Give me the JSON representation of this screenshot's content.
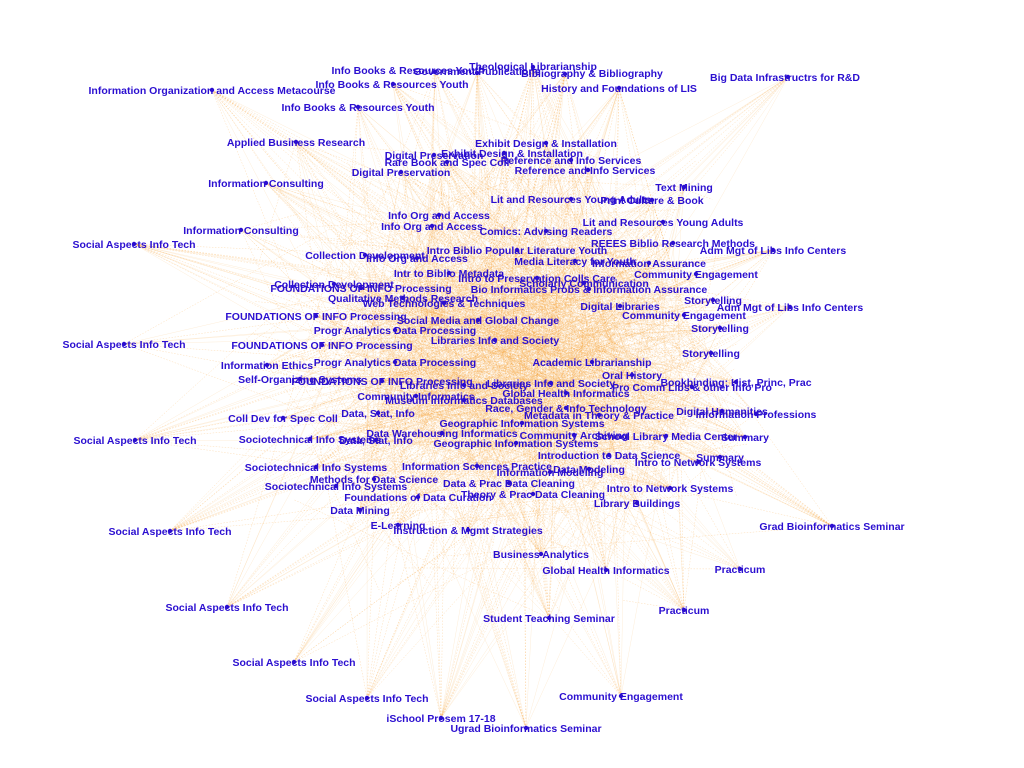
{
  "graph": {
    "edge_color": "#f7a23a",
    "label_color": "#2b0fd0",
    "nodes": [
      {
        "label": "Theological Librarianship"
      },
      {
        "label": "Info Books & Resources Youth"
      },
      {
        "label": "Government Publications"
      },
      {
        "label": "Bibliography & Bibliography"
      },
      {
        "label": "Big Data Infrastructrs for R&D"
      },
      {
        "label": "Info Books & Resources Youth"
      },
      {
        "label": "Information Organization and Access Metacourse"
      },
      {
        "label": "History and Foundations of LIS"
      },
      {
        "label": "Info Books & Resources Youth"
      },
      {
        "label": "Applied Business Research"
      },
      {
        "label": "Exhibit Design & Installation"
      },
      {
        "label": "Exhibit Design & Installation"
      },
      {
        "label": "Digital Preservation"
      },
      {
        "label": "Rare Book and Spec Coll"
      },
      {
        "label": "Reference and Info Services"
      },
      {
        "label": "Reference and Info Services"
      },
      {
        "label": "Digital Preservation"
      },
      {
        "label": "Text Mining"
      },
      {
        "label": "Information Consulting"
      },
      {
        "label": "Lit and Resources Young Adults"
      },
      {
        "label": "Print Culture & Book"
      },
      {
        "label": "Information Consulting"
      },
      {
        "label": "Social Aspects Info Tech"
      },
      {
        "label": "Info Org and Access"
      },
      {
        "label": "Comics: Advising Readers"
      },
      {
        "label": "Lit and Resources Young Adults"
      },
      {
        "label": "Info Org and Access"
      },
      {
        "label": "REEES Biblio Research Methods"
      },
      {
        "label": "Intro Biblio Popular Literature Youth"
      },
      {
        "label": "Adm Mgt of Libs Info Centers"
      },
      {
        "label": "Collection Development"
      },
      {
        "label": "Info Org and Access"
      },
      {
        "label": "Media Literacy for Youth"
      },
      {
        "label": "Information Assurance"
      },
      {
        "label": "Intr to Biblio Metadata"
      },
      {
        "label": "Intro to Preservation Colls Care"
      },
      {
        "label": "Community Engagement"
      },
      {
        "label": "Collection Development"
      },
      {
        "label": "Scholarly Communication"
      },
      {
        "label": "Bio Informatics Probs & Information Assurance"
      },
      {
        "label": "FOUNDATIONS OF INFO Processing"
      },
      {
        "label": "Qualitative Methods Research"
      },
      {
        "label": "Storytelling"
      },
      {
        "label": "Adm Mgt of Libs Info Centers"
      },
      {
        "label": "Web Technologies & Techniques"
      },
      {
        "label": "Digital Libraries"
      },
      {
        "label": "FOUNDATIONS OF INFO Processing"
      },
      {
        "label": "Community Engagement"
      },
      {
        "label": "Social Media and Global Change"
      },
      {
        "label": "Progr Analytics Data Processing"
      },
      {
        "label": "Storytelling"
      },
      {
        "label": "Social Aspects Info Tech"
      },
      {
        "label": "FOUNDATIONS OF INFO Processing"
      },
      {
        "label": "Libraries Info and Society"
      },
      {
        "label": "Storytelling"
      },
      {
        "label": "Information Ethics"
      },
      {
        "label": "Progr Analytics Data Processing"
      },
      {
        "label": "Academic Librarianship"
      },
      {
        "label": "Self-Organizing Systems"
      },
      {
        "label": "FOUNDATIONS OF INFO Processing"
      },
      {
        "label": "Libraries Info and Society"
      },
      {
        "label": "Oral History"
      },
      {
        "label": "Bookbinding: Hist, Princ, Prac"
      },
      {
        "label": "Libraries Info and Society"
      },
      {
        "label": "Community Informatics"
      },
      {
        "label": "Pro Comm Libs & other Info Pro"
      },
      {
        "label": "Global Health Informatics"
      },
      {
        "label": "Museum Informatics Databases"
      },
      {
        "label": "Race, Gender & Info Technology"
      },
      {
        "label": "Coll Dev for Spec Coll"
      },
      {
        "label": "Data, Stat, Info"
      },
      {
        "label": "Metadata in Theory & Practice"
      },
      {
        "label": "Digital Humanities"
      },
      {
        "label": "Information Professions"
      },
      {
        "label": "Geographic Information Systems"
      },
      {
        "label": "Data Warehousing Informatics"
      },
      {
        "label": "Community Archiving"
      },
      {
        "label": "School Library Media Center"
      },
      {
        "label": "Summary"
      },
      {
        "label": "Social Aspects Info Tech"
      },
      {
        "label": "Sociotechnical Info Systems"
      },
      {
        "label": "Data, Stat, Info"
      },
      {
        "label": "Geographic Information Systems"
      },
      {
        "label": "Introduction to Data Science"
      },
      {
        "label": "Summary"
      },
      {
        "label": "Intro to Network Systems"
      },
      {
        "label": "Sociotechnical Info Systems"
      },
      {
        "label": "Information Sciences Practice"
      },
      {
        "label": "Data Modeling"
      },
      {
        "label": "Methods for Data Science"
      },
      {
        "label": "Data & Prac Data Cleaning"
      },
      {
        "label": "Sociotechnical Info Systems"
      },
      {
        "label": "Information Modeling"
      },
      {
        "label": "Intro to Network Systems"
      },
      {
        "label": "Foundations of Data Curation"
      },
      {
        "label": "Theory & Prac Data Cleaning"
      },
      {
        "label": "Library Buildings"
      },
      {
        "label": "Data Mining"
      },
      {
        "label": "Grad Bioinformatics Seminar"
      },
      {
        "label": "E-Learning"
      },
      {
        "label": "Instruction & Mgmt Strategies"
      },
      {
        "label": "Social Aspects Info Tech"
      },
      {
        "label": "Business Analytics"
      },
      {
        "label": "Global Health Informatics"
      },
      {
        "label": "Practicum"
      },
      {
        "label": "Social Aspects Info Tech"
      },
      {
        "label": "Practicum"
      },
      {
        "label": "Student Teaching Seminar"
      },
      {
        "label": "Social Aspects Info Tech"
      },
      {
        "label": "Community Engagement"
      },
      {
        "label": "Social Aspects Info Tech"
      },
      {
        "label": "iSchool Prosem 17-18"
      },
      {
        "label": "Ugrad Bioinformatics Seminar"
      }
    ]
  }
}
